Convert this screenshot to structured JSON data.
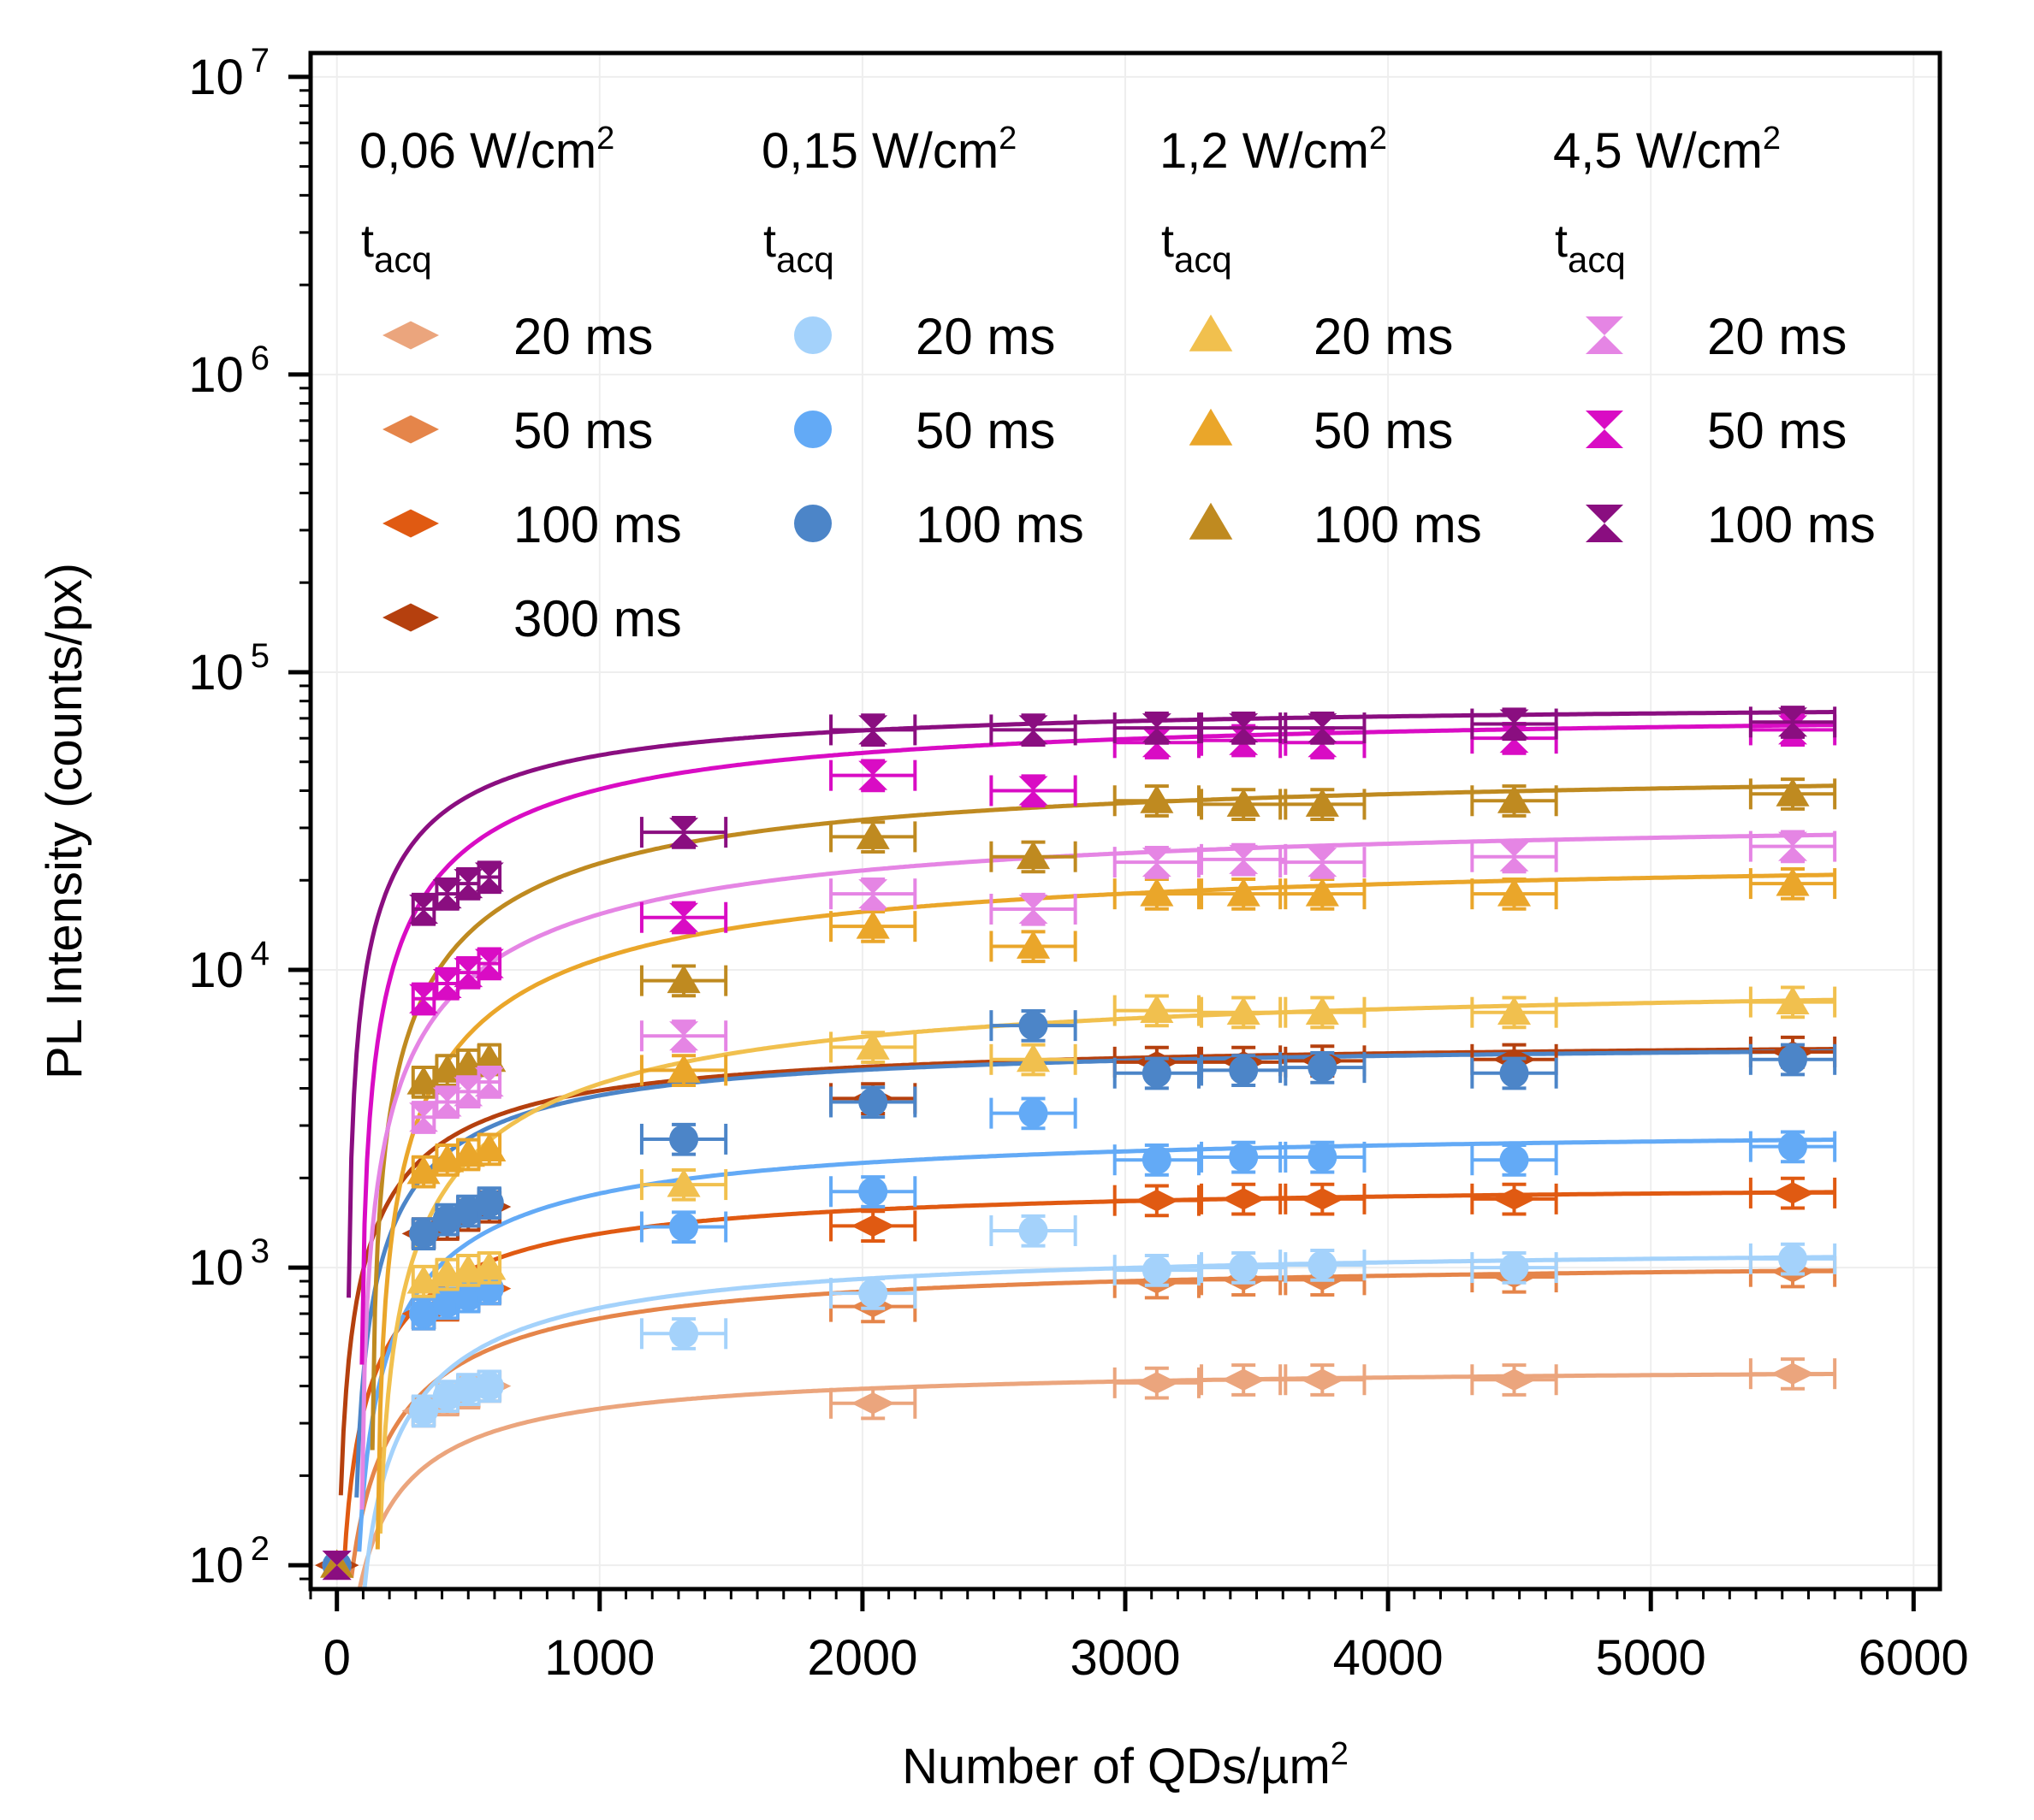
{
  "chart_data": {
    "type": "scatter",
    "title": "",
    "xlabel": "Number of QDs/µm",
    "xlabel_sup": "2",
    "ylabel": "PL Intensity (counts/px)",
    "xlim": [
      -100,
      6100
    ],
    "ylim_log10": [
      1.92,
      7.08
    ],
    "yscale": "log",
    "x_ticks": [
      0,
      1000,
      2000,
      3000,
      4000,
      5000,
      6000
    ],
    "x_tick_labels": [
      "0",
      "1000",
      "2000",
      "3000",
      "4000",
      "5000",
      "6000"
    ],
    "y_ticks_exp": [
      2,
      3,
      4,
      5,
      6,
      7
    ],
    "y_tick_base": "10",
    "y_tick_exp_labels": [
      "2",
      "3",
      "4",
      "5",
      "6",
      "7"
    ],
    "grid": true,
    "legend_position": "top",
    "x": [
      0,
      330,
      420,
      500,
      580,
      1320,
      2040,
      2650,
      3120,
      3450,
      3750,
      4480,
      5540
    ],
    "groups": [
      {
        "heading": "0,06 W/cm",
        "heading_sup": "2",
        "sub": "t",
        "sub_sub": "acq",
        "marker": "diamond",
        "series": [
          {
            "name": "20 ms",
            "color": "#eba57d",
            "values": [
              100,
              330,
              360,
              380,
              400,
              null,
              350,
              null,
              410,
              420,
              420,
              420,
              440
            ],
            "fit": {
              "a": 470,
              "k": 400,
              "x0": 0
            }
          },
          {
            "name": "50 ms",
            "color": "#e5854a",
            "values": [
              100,
              null,
              null,
              null,
              null,
              null,
              740,
              null,
              890,
              910,
              910,
              930,
              970
            ],
            "fit": {
              "a": 1080,
              "k": 600,
              "x0": 0
            }
          },
          {
            "name": "100 ms",
            "color": "#e05a12",
            "values": [
              100,
              700,
              750,
              800,
              850,
              null,
              1380,
              null,
              1680,
              1700,
              1700,
              1700,
              1780
            ],
            "fit": {
              "a": 1950,
              "k": 500,
              "x0": 0
            }
          },
          {
            "name": "300 ms",
            "color": "#b5400e",
            "values": [
              100,
              1300,
              1400,
              1500,
              1600,
              null,
              3700,
              null,
              4900,
              4900,
              4950,
              5000,
              5300
            ],
            "fit": {
              "a": 5900,
              "k": 500,
              "x0": 0
            }
          }
        ]
      },
      {
        "heading": "0,15 W/cm",
        "heading_sup": "2",
        "sub": "t",
        "sub_sub": "acq",
        "marker": "circle",
        "series": [
          {
            "name": "20 ms",
            "color": "#a4d2fb",
            "values": [
              100,
              330,
              370,
              390,
              400,
              600,
              820,
              1330,
              980,
              1000,
              1020,
              1000,
              1070
            ],
            "fit": {
              "a": 1200,
              "k": 600,
              "x0": 60
            }
          },
          {
            "name": "50 ms",
            "color": "#63aaf6",
            "values": [
              100,
              700,
              760,
              800,
              850,
              1370,
              1800,
              3300,
              2300,
              2350,
              2350,
              2300,
              2550
            ],
            "fit": {
              "a": 3000,
              "k": 650,
              "x0": 60
            }
          },
          {
            "name": "100 ms",
            "color": "#4c85c8",
            "values": [
              100,
              1300,
              1450,
              1550,
              1650,
              2700,
              3600,
              6500,
              4500,
              4600,
              4700,
              4500,
              5000
            ],
            "fit": {
              "a": 5800,
              "k": 500,
              "x0": 60
            }
          }
        ]
      },
      {
        "heading": "1,2 W/cm",
        "heading_sup": "2",
        "sub": "t",
        "sub_sub": "acq",
        "marker": "triangle",
        "series": [
          {
            "name": "20 ms",
            "color": "#f1c04e",
            "values": [
              100,
              900,
              950,
              980,
              1000,
              1900,
              5500,
              5000,
              7300,
              7200,
              7200,
              7200,
              7800
            ],
            "fit": {
              "a": 9500,
              "k": 1100,
              "x0": 150
            }
          },
          {
            "name": "50 ms",
            "color": "#eaa62a",
            "values": [
              100,
              2100,
              2300,
              2400,
              2500,
              4600,
              14000,
              12000,
              18000,
              18000,
              18000,
              18000,
              19500
            ],
            "fit": {
              "a": 25000,
              "k": 1100,
              "x0": 150
            }
          },
          {
            "name": "100 ms",
            "color": "#bf8a20",
            "values": [
              100,
              4200,
              4600,
              4800,
              5000,
              9200,
              28000,
              24000,
              37000,
              36000,
              36000,
              37000,
              39000
            ],
            "fit": {
              "a": 49000,
              "k": 1000,
              "x0": 130
            }
          }
        ]
      },
      {
        "heading": "4,5 W/cm",
        "heading_sup": "2",
        "sub": "t",
        "sub_sub": "acq",
        "marker": "hourglass",
        "series": [
          {
            "name": "20 ms",
            "color": "#e585e4",
            "values": [
              100,
              3200,
              3600,
              3900,
              4200,
              6000,
              18000,
              16000,
              23000,
              23500,
              23000,
              24000,
              26000
            ],
            "fit": {
              "a": 34000,
              "k": 1100,
              "x0": 90
            }
          },
          {
            "name": "50 ms",
            "color": "#d90cc4",
            "values": [
              100,
              8000,
              9000,
              9800,
              10500,
              15000,
              45000,
              40000,
              58000,
              59000,
              58000,
              60000,
              64000
            ],
            "fit": {
              "a": 76000,
              "k": 800,
              "x0": 90
            }
          },
          {
            "name": "100 ms",
            "color": "#8a0e80",
            "values": [
              100,
              16000,
              18000,
              19500,
              20500,
              29000,
              64000,
              64000,
              65000,
              65000,
              65000,
              67000,
              68000
            ],
            "fit": {
              "a": 80000,
              "k": 500,
              "x0": 40
            }
          }
        ]
      }
    ]
  }
}
